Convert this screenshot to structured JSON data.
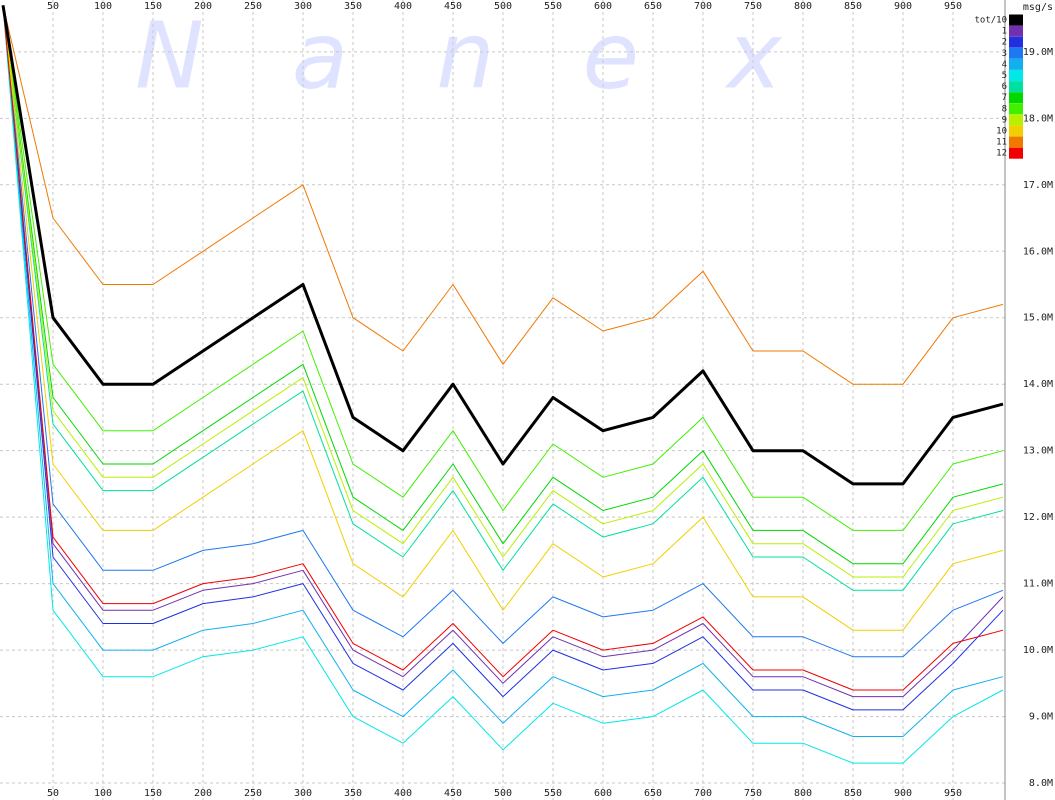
{
  "chart_data": {
    "type": "line",
    "watermark": "Nanex",
    "y_unit_label": "msg/s",
    "x": [
      0,
      50,
      100,
      150,
      200,
      250,
      300,
      350,
      400,
      450,
      500,
      550,
      600,
      650,
      700,
      750,
      800,
      850,
      900,
      950,
      1000
    ],
    "xlim": [
      0,
      1000
    ],
    "xticks": [
      50,
      100,
      150,
      200,
      250,
      300,
      350,
      400,
      450,
      500,
      550,
      600,
      650,
      700,
      750,
      800,
      850,
      900,
      950
    ],
    "ylim": [
      7.82,
      19.78
    ],
    "yticks": [
      {
        "value": 8,
        "label": "8.0M"
      },
      {
        "value": 9,
        "label": "9.0M"
      },
      {
        "value": 10,
        "label": "10.0M"
      },
      {
        "value": 11,
        "label": "11.0M"
      },
      {
        "value": 12,
        "label": "12.0M"
      },
      {
        "value": 13,
        "label": "13.0M"
      },
      {
        "value": 14,
        "label": "14.0M"
      },
      {
        "value": 15,
        "label": "15.0M"
      },
      {
        "value": 16,
        "label": "16.0M"
      },
      {
        "value": 17,
        "label": "17.0M"
      },
      {
        "value": 18,
        "label": "18.0M"
      },
      {
        "value": 19,
        "label": "19.0M"
      }
    ],
    "grid": true,
    "legend": "top-right",
    "series": [
      {
        "name": "tot/10",
        "color": "#000000",
        "values": [
          19.7,
          15.0,
          14.0,
          14.0,
          14.5,
          15.0,
          15.5,
          13.5,
          13.0,
          14.0,
          12.8,
          13.8,
          13.3,
          13.5,
          14.2,
          13.0,
          13.0,
          12.5,
          12.5,
          13.5,
          13.7
        ]
      },
      {
        "name": "1",
        "color": "#7030b0",
        "values": [
          19.7,
          11.6,
          10.6,
          10.6,
          10.9,
          11.0,
          11.2,
          10.0,
          9.6,
          10.3,
          9.5,
          10.2,
          9.9,
          10.0,
          10.4,
          9.6,
          9.6,
          9.3,
          9.3,
          10.0,
          10.8
        ]
      },
      {
        "name": "2",
        "color": "#2030e0",
        "values": [
          19.7,
          11.4,
          10.4,
          10.4,
          10.7,
          10.8,
          11.0,
          9.8,
          9.4,
          10.1,
          9.3,
          10.0,
          9.7,
          9.8,
          10.2,
          9.4,
          9.4,
          9.1,
          9.1,
          9.8,
          10.6
        ]
      },
      {
        "name": "3",
        "color": "#1e78f0",
        "values": [
          19.7,
          12.2,
          11.2,
          11.2,
          11.5,
          11.6,
          11.8,
          10.6,
          10.2,
          10.9,
          10.1,
          10.8,
          10.5,
          10.6,
          11.0,
          10.2,
          10.2,
          9.9,
          9.9,
          10.6,
          10.9
        ]
      },
      {
        "name": "4",
        "color": "#10b0f0",
        "values": [
          19.7,
          11.0,
          10.0,
          10.0,
          10.3,
          10.4,
          10.6,
          9.4,
          9.0,
          9.7,
          8.9,
          9.6,
          9.3,
          9.4,
          9.8,
          9.0,
          9.0,
          8.7,
          8.7,
          9.4,
          9.6
        ]
      },
      {
        "name": "5",
        "color": "#00e8e8",
        "values": [
          19.7,
          10.6,
          9.6,
          9.6,
          9.9,
          10.0,
          10.2,
          9.0,
          8.6,
          9.3,
          8.5,
          9.2,
          8.9,
          9.0,
          9.4,
          8.6,
          8.6,
          8.3,
          8.3,
          9.0,
          9.4
        ]
      },
      {
        "name": "6",
        "color": "#00e0a0",
        "values": [
          19.7,
          13.4,
          12.4,
          12.4,
          12.9,
          13.4,
          13.9,
          11.9,
          11.4,
          12.4,
          11.2,
          12.2,
          11.7,
          11.9,
          12.6,
          11.4,
          11.4,
          10.9,
          10.9,
          11.9,
          12.1
        ]
      },
      {
        "name": "7",
        "color": "#00d800",
        "values": [
          19.7,
          13.8,
          12.8,
          12.8,
          13.3,
          13.8,
          14.3,
          12.3,
          11.8,
          12.8,
          11.6,
          12.6,
          12.1,
          12.3,
          13.0,
          11.8,
          11.8,
          11.3,
          11.3,
          12.3,
          12.5
        ]
      },
      {
        "name": "8",
        "color": "#40f000",
        "values": [
          19.7,
          14.3,
          13.3,
          13.3,
          13.8,
          14.3,
          14.8,
          12.8,
          12.3,
          13.3,
          12.1,
          13.1,
          12.6,
          12.8,
          13.5,
          12.3,
          12.3,
          11.8,
          11.8,
          12.8,
          13.0
        ]
      },
      {
        "name": "9",
        "color": "#b8f000",
        "values": [
          19.7,
          13.6,
          12.6,
          12.6,
          13.1,
          13.6,
          14.1,
          12.1,
          11.6,
          12.6,
          11.4,
          12.4,
          11.9,
          12.1,
          12.8,
          11.6,
          11.6,
          11.1,
          11.1,
          12.1,
          12.3
        ]
      },
      {
        "name": "10",
        "color": "#f0d000",
        "values": [
          19.7,
          12.8,
          11.8,
          11.8,
          12.3,
          12.8,
          13.3,
          11.3,
          10.8,
          11.8,
          10.6,
          11.6,
          11.1,
          11.3,
          12.0,
          10.8,
          10.8,
          10.3,
          10.3,
          11.3,
          11.5
        ]
      },
      {
        "name": "11",
        "color": "#f07800",
        "values": [
          19.7,
          16.5,
          15.5,
          15.5,
          16.0,
          16.5,
          17.0,
          15.0,
          14.5,
          15.5,
          14.3,
          15.3,
          14.8,
          15.0,
          15.7,
          14.5,
          14.5,
          14.0,
          14.0,
          15.0,
          15.2
        ]
      },
      {
        "name": "12",
        "color": "#f00000",
        "values": [
          19.7,
          11.7,
          10.7,
          10.7,
          11.0,
          11.1,
          11.3,
          10.1,
          9.7,
          10.4,
          9.6,
          10.3,
          10.0,
          10.1,
          10.5,
          9.7,
          9.7,
          9.4,
          9.4,
          10.1,
          10.3
        ]
      }
    ]
  }
}
